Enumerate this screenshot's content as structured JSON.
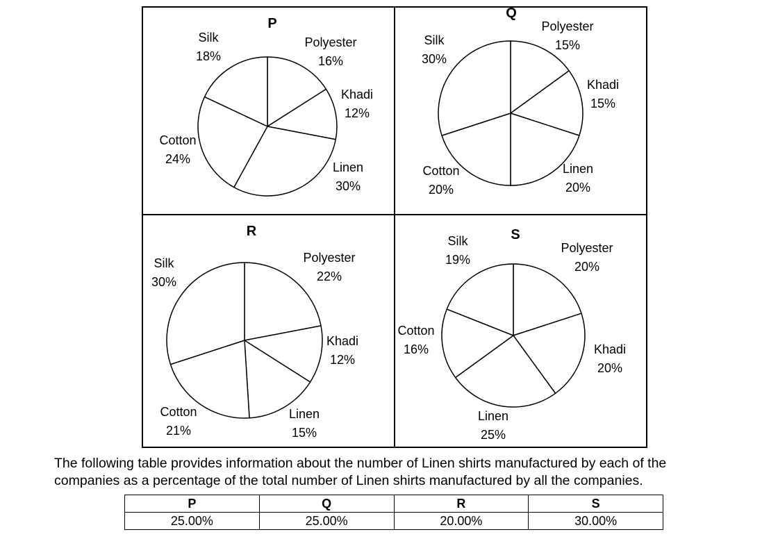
{
  "chart_data": [
    {
      "type": "pie",
      "title": "P",
      "categories": [
        "Polyester",
        "Khadi",
        "Linen",
        "Cotton",
        "Silk"
      ],
      "values": [
        16,
        12,
        30,
        24,
        18
      ],
      "value_labels": [
        "16%",
        "12%",
        "30%",
        "24%",
        "18%"
      ],
      "unit": "%"
    },
    {
      "type": "pie",
      "title": "Q",
      "categories": [
        "Polyester",
        "Khadi",
        "Linen",
        "Cotton",
        "Silk"
      ],
      "values": [
        15,
        15,
        20,
        20,
        30
      ],
      "value_labels": [
        "15%",
        "15%",
        "20%",
        "20%",
        "30%"
      ],
      "unit": "%"
    },
    {
      "type": "pie",
      "title": "R",
      "categories": [
        "Polyester",
        "Khadi",
        "Linen",
        "Cotton",
        "Silk"
      ],
      "values": [
        22,
        12,
        15,
        21,
        30
      ],
      "value_labels": [
        "22%",
        "12%",
        "15%",
        "21%",
        "30%"
      ],
      "unit": "%"
    },
    {
      "type": "pie",
      "title": "S",
      "categories": [
        "Polyester",
        "Khadi",
        "Linen",
        "Cotton",
        "Silk"
      ],
      "values": [
        20,
        20,
        25,
        16,
        19
      ],
      "value_labels": [
        "20%",
        "20%",
        "25%",
        "16%",
        "19%"
      ],
      "unit": "%"
    },
    {
      "type": "table",
      "columns": [
        "P",
        "Q",
        "R",
        "S"
      ],
      "rows": [
        [
          "25.00%",
          "25.00%",
          "20.00%",
          "30.00%"
        ]
      ]
    }
  ],
  "caption": {
    "line1": "The following table provides information about the number of Linen shirts manufactured by each of the",
    "line2": "companies as a percentage of the total number of Linen shirts manufactured by all the companies."
  },
  "colors": {
    "stroke": "#000000",
    "fill": "#ffffff"
  }
}
